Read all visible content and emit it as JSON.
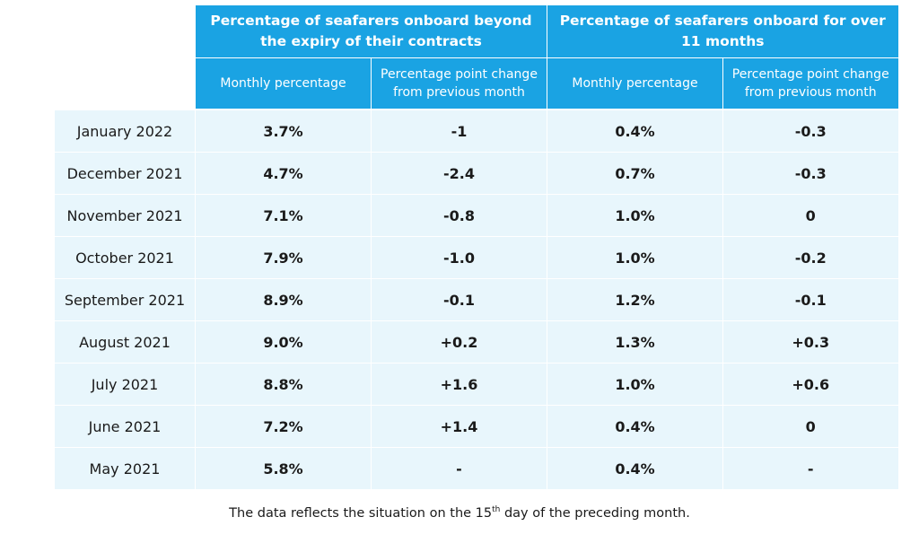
{
  "chart_data": {
    "type": "table",
    "header_groups": [
      "Percentage of seafarers onboard beyond the expiry of their contracts",
      "Percentage of seafarers onboard for over 11 months"
    ],
    "sub_headers": [
      "Monthly percentage",
      "Percentage point change from previous month",
      "Monthly percentage",
      "Percentage point change from previous month"
    ],
    "rows": [
      {
        "month": "January 2022",
        "beyond_pct": "3.7%",
        "beyond_change": "-1",
        "over11_pct": "0.4%",
        "over11_change": "-0.3"
      },
      {
        "month": "December 2021",
        "beyond_pct": "4.7%",
        "beyond_change": "-2.4",
        "over11_pct": "0.7%",
        "over11_change": "-0.3"
      },
      {
        "month": "November 2021",
        "beyond_pct": "7.1%",
        "beyond_change": "-0.8",
        "over11_pct": "1.0%",
        "over11_change": "0"
      },
      {
        "month": "October 2021",
        "beyond_pct": "7.9%",
        "beyond_change": "-1.0",
        "over11_pct": "1.0%",
        "over11_change": "-0.2"
      },
      {
        "month": "September 2021",
        "beyond_pct": "8.9%",
        "beyond_change": "-0.1",
        "over11_pct": "1.2%",
        "over11_change": "-0.1"
      },
      {
        "month": "August 2021",
        "beyond_pct": "9.0%",
        "beyond_change": "+0.2",
        "over11_pct": "1.3%",
        "over11_change": "+0.3"
      },
      {
        "month": "July 2021",
        "beyond_pct": "8.8%",
        "beyond_change": "+1.6",
        "over11_pct": "1.0%",
        "over11_change": "+0.6"
      },
      {
        "month": "June 2021",
        "beyond_pct": "7.2%",
        "beyond_change": "+1.4",
        "over11_pct": "0.4%",
        "over11_change": "0"
      },
      {
        "month": "May 2021",
        "beyond_pct": "5.8%",
        "beyond_change": "-",
        "over11_pct": "0.4%",
        "over11_change": "-"
      }
    ],
    "footnote": {
      "before": "The data reflects the situation on the 15",
      "superscript": "th",
      "after": " day of the preceding month."
    }
  },
  "colors": {
    "header_background": "#1aa3e3",
    "header_text": "#ffffff",
    "row_background": "#e8f6fc"
  }
}
